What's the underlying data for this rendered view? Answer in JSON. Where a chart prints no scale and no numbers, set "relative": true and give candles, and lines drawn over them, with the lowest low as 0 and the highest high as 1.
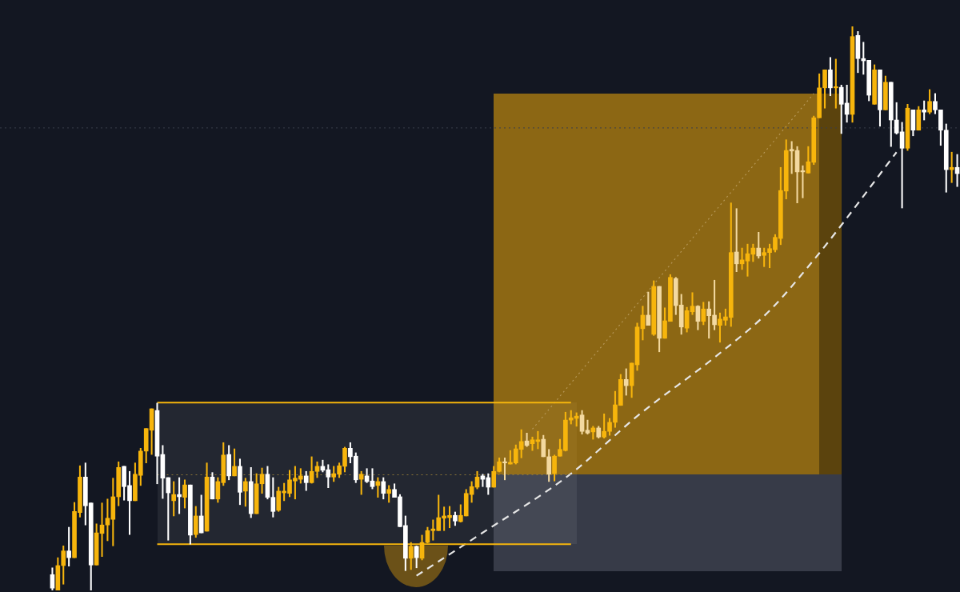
{
  "chart_data": {
    "type": "candlestick",
    "relative": true,
    "categories": [
      null,
      null,
      null,
      null,
      null,
      null,
      null,
      null,
      null,
      null,
      null,
      null,
      null,
      null,
      null,
      null,
      null,
      null,
      null,
      null,
      null,
      null,
      null,
      null,
      null,
      null,
      null,
      null,
      null,
      null,
      null,
      null,
      null,
      null,
      null,
      null,
      null,
      null,
      null,
      null,
      null,
      null,
      null,
      null,
      null,
      null,
      null,
      null,
      null,
      null,
      null,
      null,
      null,
      null,
      null,
      null,
      null,
      null,
      null,
      null,
      null,
      null,
      null,
      null,
      null,
      null,
      null,
      null,
      null,
      null,
      null,
      null,
      null,
      null,
      null,
      null,
      null,
      null,
      null,
      null,
      null,
      null,
      null,
      null,
      null,
      null,
      null,
      null,
      null,
      null,
      null,
      null,
      null,
      null,
      null,
      null,
      null,
      null,
      null,
      null,
      null,
      null,
      null,
      null,
      null,
      null,
      null,
      null,
      null,
      null,
      null,
      null,
      null,
      null,
      null,
      null,
      null,
      null,
      null,
      null,
      null,
      null,
      null,
      null,
      null,
      null,
      null,
      null,
      null,
      null,
      null,
      null,
      null,
      null,
      null,
      null,
      null,
      null,
      null,
      null,
      null,
      null,
      null,
      null,
      null,
      null,
      null,
      null,
      null,
      null,
      null,
      null,
      null,
      null,
      null,
      null,
      null,
      null,
      null,
      null,
      null,
      null,
      null,
      null,
      null
    ],
    "ohlc": [
      [
        0.028,
        0.04,
        0,
        0.004
      ],
      [
        0,
        0.058,
        0,
        0.044
      ],
      [
        0.044,
        0.079,
        0.011,
        0.07
      ],
      [
        0.07,
        0.112,
        0.043,
        0.058
      ],
      [
        0.058,
        0.156,
        0.058,
        0.14
      ],
      [
        0.138,
        0.221,
        0.13,
        0.201
      ],
      [
        0.201,
        0.226,
        0.116,
        0.15
      ],
      [
        0.155,
        0.155,
        0,
        0.045
      ],
      [
        0.045,
        0.118,
        0.045,
        0.102
      ],
      [
        0.101,
        0.155,
        0.06,
        0.116
      ],
      [
        0.116,
        0.162,
        0.088,
        0.128
      ],
      [
        0.126,
        0.199,
        0.079,
        0.166
      ],
      [
        0.166,
        0.228,
        0.15,
        0.218
      ],
      [
        0.22,
        0.22,
        0.16,
        0.184
      ],
      [
        0.186,
        0.211,
        0.099,
        0.159
      ],
      [
        0.159,
        0.226,
        0.159,
        0.206
      ],
      [
        0.204,
        0.252,
        0.186,
        0.247
      ],
      [
        0.247,
        0.287,
        0.226,
        0.287
      ],
      [
        0.284,
        0.322,
        0.241,
        0.322
      ],
      [
        0.319,
        0.332,
        0.189,
        0.238
      ],
      [
        0.241,
        0.257,
        0.163,
        0.199
      ],
      [
        0.2,
        0.2,
        0.089,
        0.173
      ],
      [
        0.159,
        0.193,
        0.132,
        0.17
      ],
      [
        0.17,
        0.2,
        0.136,
        0.166
      ],
      [
        0.165,
        0.196,
        0.146,
        0.187
      ],
      [
        0.187,
        0.187,
        0.082,
        0.098
      ],
      [
        0.099,
        0.149,
        0.094,
        0.132
      ],
      [
        0.132,
        0.169,
        0.102,
        0.102
      ],
      [
        0.105,
        0.226,
        0.105,
        0.201
      ],
      [
        0.201,
        0.209,
        0.162,
        0.162
      ],
      [
        0.162,
        0.2,
        0.156,
        0.193
      ],
      [
        0.191,
        0.262,
        0.186,
        0.24
      ],
      [
        0.241,
        0.257,
        0.196,
        0.203
      ],
      [
        0.203,
        0.251,
        0.203,
        0.22
      ],
      [
        0.22,
        0.233,
        0.152,
        0.174
      ],
      [
        0.176,
        0.199,
        0.149,
        0.193
      ],
      [
        0.193,
        0.218,
        0.129,
        0.136
      ],
      [
        0.136,
        0.207,
        0.136,
        0.189
      ],
      [
        0.189,
        0.217,
        0.172,
        0.206
      ],
      [
        0.206,
        0.22,
        0.162,
        0.165
      ],
      [
        0.165,
        0.2,
        0.13,
        0.14
      ],
      [
        0.142,
        0.183,
        0.14,
        0.176
      ],
      [
        0.173,
        0.19,
        0.159,
        0.176
      ],
      [
        0.172,
        0.213,
        0.166,
        0.196
      ],
      [
        0.194,
        0.22,
        0.162,
        0.199
      ],
      [
        0.197,
        0.216,
        0.19,
        0.203
      ],
      [
        0.203,
        0.211,
        0.177,
        0.191
      ],
      [
        0.191,
        0.237,
        0.19,
        0.211
      ],
      [
        0.211,
        0.228,
        0.2,
        0.22
      ],
      [
        0.22,
        0.231,
        0.21,
        0.213
      ],
      [
        0.214,
        0.223,
        0.182,
        0.201
      ],
      [
        0.201,
        0.22,
        0.193,
        0.207
      ],
      [
        0.206,
        0.226,
        0.2,
        0.221
      ],
      [
        0.22,
        0.254,
        0.21,
        0.252
      ],
      [
        0.252,
        0.262,
        0.226,
        0.237
      ],
      [
        0.238,
        0.244,
        0.191,
        0.196
      ],
      [
        0.197,
        0.211,
        0.17,
        0.206
      ],
      [
        0.203,
        0.216,
        0.191,
        0.193
      ],
      [
        0.194,
        0.216,
        0.18,
        0.184
      ],
      [
        0.186,
        0.2,
        0.165,
        0.193
      ],
      [
        0.193,
        0.2,
        0.162,
        0.172
      ],
      [
        0.172,
        0.186,
        0.156,
        0.179
      ],
      [
        0.179,
        0.189,
        0.165,
        0.165
      ],
      [
        0.166,
        0.17,
        0.113,
        0.113
      ],
      [
        0.115,
        0.132,
        0.035,
        0.057
      ],
      [
        0.057,
        0.085,
        0.037,
        0.078
      ],
      [
        0.078,
        0.079,
        0.04,
        0.058
      ],
      [
        0.057,
        0.098,
        0.054,
        0.085
      ],
      [
        0.085,
        0.112,
        0.084,
        0.106
      ],
      [
        0.106,
        0.125,
        0.089,
        0.109
      ],
      [
        0.106,
        0.169,
        0.106,
        0.129
      ],
      [
        0.128,
        0.148,
        0.106,
        0.132
      ],
      [
        0.129,
        0.149,
        0.111,
        0.133
      ],
      [
        0.133,
        0.139,
        0.115,
        0.123
      ],
      [
        0.122,
        0.152,
        0.121,
        0.133
      ],
      [
        0.132,
        0.179,
        0.132,
        0.172
      ],
      [
        0.17,
        0.193,
        0.156,
        0.184
      ],
      [
        0.183,
        0.211,
        0.18,
        0.201
      ],
      [
        0.203,
        0.206,
        0.184,
        0.197
      ],
      [
        0.2,
        0.207,
        0.17,
        0.183
      ],
      [
        0.183,
        0.22,
        0.183,
        0.211
      ],
      [
        0.211,
        0.235,
        0.21,
        0.228
      ],
      [
        0.228,
        0.235,
        0.196,
        0.226
      ],
      [
        0.224,
        0.248,
        0.224,
        0.227
      ],
      [
        0.226,
        0.258,
        0.224,
        0.251
      ],
      [
        0.25,
        0.285,
        0.235,
        0.264
      ],
      [
        0.265,
        0.279,
        0.255,
        0.257
      ],
      [
        0.26,
        0.272,
        0.248,
        0.267
      ],
      [
        0.264,
        0.282,
        0.251,
        0.267
      ],
      [
        0.268,
        0.275,
        0.237,
        0.237
      ],
      [
        0.237,
        0.25,
        0.193,
        0.206
      ],
      [
        0.207,
        0.24,
        0.194,
        0.238
      ],
      [
        0.238,
        0.268,
        0.238,
        0.25
      ],
      [
        0.248,
        0.316,
        0.247,
        0.302
      ],
      [
        0.302,
        0.319,
        0.295,
        0.306
      ],
      [
        0.305,
        0.315,
        0.291,
        0.309
      ],
      [
        0.311,
        0.319,
        0.277,
        0.282
      ],
      [
        0.284,
        0.302,
        0.277,
        0.279
      ],
      [
        0.281,
        0.291,
        0.268,
        0.288
      ],
      [
        0.288,
        0.291,
        0.27,
        0.272
      ],
      [
        0.272,
        0.313,
        0.27,
        0.282
      ],
      [
        0.282,
        0.305,
        0.275,
        0.298
      ],
      [
        0.298,
        0.353,
        0.289,
        0.329
      ],
      [
        0.328,
        0.383,
        0.328,
        0.374
      ],
      [
        0.374,
        0.393,
        0.346,
        0.363
      ],
      [
        0.363,
        0.403,
        0.342,
        0.403
      ],
      [
        0.4,
        0.474,
        0.39,
        0.467
      ],
      [
        0.464,
        0.504,
        0.444,
        0.488
      ],
      [
        0.488,
        0.529,
        0.47,
        0.47
      ],
      [
        0.454,
        0.549,
        0.452,
        0.539
      ],
      [
        0.539,
        0.539,
        0.423,
        0.447
      ],
      [
        0.447,
        0.501,
        0.447,
        0.478
      ],
      [
        0.477,
        0.56,
        0.477,
        0.555
      ],
      [
        0.553,
        0.555,
        0.489,
        0.505
      ],
      [
        0.506,
        0.525,
        0.454,
        0.467
      ],
      [
        0.465,
        0.502,
        0.458,
        0.496
      ],
      [
        0.494,
        0.528,
        0.489,
        0.504
      ],
      [
        0.504,
        0.505,
        0.462,
        0.477
      ],
      [
        0.477,
        0.511,
        0.471,
        0.499
      ],
      [
        0.499,
        0.512,
        0.447,
        0.487
      ],
      [
        0.488,
        0.55,
        0.462,
        0.471
      ],
      [
        0.47,
        0.492,
        0.44,
        0.481
      ],
      [
        0.479,
        0.499,
        0.47,
        0.485
      ],
      [
        0.484,
        0.687,
        0.468,
        0.599
      ],
      [
        0.6,
        0.677,
        0.565,
        0.579
      ],
      [
        0.579,
        0.607,
        0.569,
        0.586
      ],
      [
        0.584,
        0.614,
        0.557,
        0.597
      ],
      [
        0.596,
        0.614,
        0.583,
        0.607
      ],
      [
        0.607,
        0.635,
        0.589,
        0.593
      ],
      [
        0.594,
        0.607,
        0.574,
        0.599
      ],
      [
        0.599,
        0.614,
        0.572,
        0.606
      ],
      [
        0.604,
        0.631,
        0.6,
        0.626
      ],
      [
        0.624,
        0.75,
        0.613,
        0.709
      ],
      [
        0.708,
        0.799,
        0.694,
        0.78
      ],
      [
        0.782,
        0.796,
        0.739,
        0.779
      ],
      [
        0.78,
        0.787,
        0.687,
        0.742
      ],
      [
        0.743,
        0.753,
        0.696,
        0.742
      ],
      [
        0.74,
        0.787,
        0.74,
        0.76
      ],
      [
        0.759,
        0.841,
        0.755,
        0.838
      ],
      [
        0.838,
        0.916,
        0.838,
        0.891
      ],
      [
        0.891,
        0.923,
        0.855,
        0.923
      ],
      [
        0.923,
        0.945,
        0.877,
        0.891
      ],
      [
        0.891,
        0.942,
        0.855,
        0.892
      ],
      [
        0.892,
        0.896,
        0.81,
        0.862
      ],
      [
        0.864,
        0.896,
        0.83,
        0.844
      ],
      [
        0.844,
        1,
        0.83,
        0.982
      ],
      [
        0.984,
        0.991,
        0.918,
        0.943
      ],
      [
        0.943,
        0.972,
        0.915,
        0.939
      ],
      [
        0.94,
        0.94,
        0.868,
        0.878
      ],
      [
        0.862,
        0.932,
        0.862,
        0.923
      ],
      [
        0.923,
        0.923,
        0.823,
        0.852
      ],
      [
        0.852,
        0.912,
        0.852,
        0.901
      ],
      [
        0.901,
        0.901,
        0.787,
        0.834
      ],
      [
        0.834,
        0.865,
        0.809,
        0.811
      ],
      [
        0.813,
        0.83,
        0.678,
        0.784
      ],
      [
        0.784,
        0.862,
        0.78,
        0.855
      ],
      [
        0.852,
        0.852,
        0.806,
        0.816
      ],
      [
        0.816,
        0.858,
        0.816,
        0.852
      ],
      [
        0.852,
        0.868,
        0.834,
        0.848
      ],
      [
        0.848,
        0.888,
        0.845,
        0.867
      ],
      [
        0.867,
        0.881,
        0.845,
        0.852
      ],
      [
        0.852,
        0.852,
        0.789,
        0.816
      ],
      [
        0.816,
        0.827,
        0.706,
        0.746
      ],
      [
        0.746,
        0.777,
        0.723,
        0.75
      ],
      [
        0.75,
        0.773,
        0.716,
        0.739
      ]
    ],
    "colors": [
      "#ffffff",
      "#f7b50c",
      "#f7b50c",
      "#ffffff",
      "#f7b50c",
      "#f7b50c",
      "#ffffff",
      "#ffffff",
      "#f7b50c",
      "#f7b50c",
      "#f7b50c",
      "#f7b50c",
      "#f7b50c",
      "#ffffff",
      "#ffffff",
      "#f7b50c",
      "#f7b50c",
      "#f7b50c",
      "#f7b50c",
      "#ffffff",
      "#ffffff",
      "#ffffff",
      "#f7b50c",
      "#ffffff",
      "#f7b50c",
      "#ffffff",
      "#f7b50c",
      "#ffffff",
      "#f7b50c",
      "#ffffff",
      "#f7b50c",
      "#f7b50c",
      "#ffffff",
      "#f7b50c",
      "#ffffff",
      "#f7b50c",
      "#ffffff",
      "#f7b50c",
      "#f7b50c",
      "#ffffff",
      "#ffffff",
      "#f7b50c",
      "#f7b50c",
      "#f7b50c",
      "#f7b50c",
      "#f7b50c",
      "#ffffff",
      "#f7b50c",
      "#f7b50c",
      "#ffffff",
      "#ffffff",
      "#f7b50c",
      "#f7b50c",
      "#f7b50c",
      "#ffffff",
      "#ffffff",
      "#f7b50c",
      "#ffffff",
      "#ffffff",
      "#f7b50c",
      "#ffffff",
      "#f7b50c",
      "#ffffff",
      "#ffffff",
      "#ffffff",
      "#f7b50c",
      "#ffffff",
      "#f7b50c",
      "#f7b50c",
      "#f7b50c",
      "#f7b50c",
      "#f7b50c",
      "#f7b50c",
      "#ffffff",
      "#f7b50c",
      "#f7b50c",
      "#f7b50c",
      "#f7b50c",
      "#ffffff",
      "#ffffff",
      "#f7b50c",
      "#f7b50c",
      "#f3d9a0",
      "#f7b50c",
      "#f7b50c",
      "#f7b50c",
      "#f3d9a0",
      "#f7b50c",
      "#f7b50c",
      "#f3d9a0",
      "#f3d9a0",
      "#f7b50c",
      "#f7b50c",
      "#f7b50c",
      "#f7b50c",
      "#f7b50c",
      "#f3d9a0",
      "#f3d9a0",
      "#f7b50c",
      "#f3d9a0",
      "#f7b50c",
      "#f7b50c",
      "#f7b50c",
      "#f7b50c",
      "#f3d9a0",
      "#f7b50c",
      "#f7b50c",
      "#f7b50c",
      "#f3d9a0",
      "#f7b50c",
      "#f3d9a0",
      "#f7b50c",
      "#f7b50c",
      "#f3d9a0",
      "#f3d9a0",
      "#f7b50c",
      "#f7b50c",
      "#f3d9a0",
      "#f7b50c",
      "#f3d9a0",
      "#f3d9a0",
      "#f7b50c",
      "#f7b50c",
      "#f7b50c",
      "#f3d9a0",
      "#f7b50c",
      "#f7b50c",
      "#f7b50c",
      "#f3d9a0",
      "#f7b50c",
      "#f7b50c",
      "#f7b50c",
      "#f7b50c",
      "#f7b50c",
      "#f3d9a0",
      "#f3d9a0",
      "#f3d9a0",
      "#f7b50c",
      "#f7b50c",
      "#f7b50c",
      "#f7b50c",
      "#ffffff",
      "#f7b50c",
      "#ffffff",
      "#ffffff",
      "#f7b50c",
      "#ffffff",
      "#ffffff",
      "#ffffff",
      "#f7b50c",
      "#ffffff",
      "#f7b50c",
      "#ffffff",
      "#ffffff",
      "#ffffff",
      "#f7b50c",
      "#ffffff",
      "#f7b50c",
      "#ffffff",
      "#f7b50c",
      "#ffffff",
      "#ffffff",
      "#ffffff",
      "#f7b50c",
      "#ffffff"
    ],
    "series": [
      {
        "type": "line",
        "color": "#f5b50c",
        "line_style": "solid",
        "values": [
          null,
          null,
          null,
          null,
          null,
          null,
          null,
          null,
          null,
          null,
          null,
          null,
          null,
          null,
          null,
          null,
          null,
          null,
          null,
          0.333,
          null,
          null,
          null,
          null,
          null,
          null,
          null,
          null,
          null,
          null,
          null,
          null,
          null,
          null,
          null,
          null,
          null,
          null,
          null,
          null,
          null,
          null,
          null,
          null,
          null,
          null,
          null,
          null,
          null,
          null,
          null,
          null,
          null,
          null,
          null,
          null,
          null,
          null,
          null,
          null,
          null,
          null,
          null,
          null,
          null,
          null,
          null,
          null,
          null,
          null,
          null,
          null,
          null,
          null,
          null,
          null,
          null,
          null,
          null,
          null,
          null,
          null,
          null,
          null,
          null,
          null,
          null,
          null,
          null,
          null,
          null,
          null,
          null,
          null,
          0.333,
          null,
          null,
          null,
          null,
          null,
          null,
          null,
          null,
          null,
          null,
          null,
          null,
          null,
          null,
          null,
          null,
          null,
          null,
          null,
          null,
          null,
          null,
          null,
          null,
          null,
          null,
          null,
          null,
          null,
          null,
          null,
          null,
          null,
          null,
          null,
          null,
          null,
          null,
          null,
          null,
          null,
          null,
          null,
          null,
          null,
          null,
          null,
          null,
          null,
          null,
          null,
          null,
          null,
          null,
          null,
          null,
          null,
          null,
          null,
          null,
          null,
          null,
          null,
          null,
          null,
          null,
          null,
          null,
          null,
          null
        ]
      },
      {
        "type": "line",
        "color": "#f5b50c",
        "line_style": "solid",
        "values": [
          null,
          null,
          null,
          null,
          null,
          null,
          null,
          null,
          null,
          null,
          null,
          null,
          null,
          null,
          null,
          null,
          null,
          null,
          null,
          0.082,
          null,
          null,
          null,
          null,
          null,
          null,
          null,
          null,
          null,
          null,
          null,
          null,
          null,
          null,
          null,
          null,
          null,
          null,
          null,
          null,
          null,
          null,
          null,
          null,
          null,
          null,
          null,
          null,
          null,
          null,
          null,
          null,
          null,
          null,
          null,
          null,
          null,
          null,
          null,
          null,
          null,
          null,
          null,
          null,
          null,
          null,
          null,
          null,
          null,
          null,
          null,
          null,
          null,
          null,
          null,
          null,
          null,
          null,
          null,
          null,
          null,
          null,
          null,
          null,
          null,
          null,
          null,
          null,
          null,
          null,
          null,
          null,
          null,
          null,
          0.082,
          null,
          null,
          null,
          null,
          null,
          null,
          null,
          null,
          null,
          null,
          null,
          null,
          null,
          null,
          null,
          null,
          null,
          null,
          null,
          null,
          null,
          null,
          null,
          null,
          null,
          null,
          null,
          null,
          null,
          null,
          null,
          null,
          null,
          null,
          null,
          null,
          null,
          null,
          null,
          null,
          null,
          null,
          null,
          null,
          null,
          null,
          null,
          null,
          null,
          null,
          null,
          null,
          null,
          null,
          null,
          null,
          null,
          null,
          null,
          null,
          null,
          null,
          null,
          null,
          null,
          null,
          null,
          null,
          null,
          null
        ]
      },
      {
        "type": "line",
        "color": "#8a7436",
        "line_style": "dotted",
        "values": [
          null,
          null,
          null,
          null,
          null,
          null,
          null,
          null,
          null,
          null,
          null,
          null,
          null,
          null,
          null,
          null,
          null,
          null,
          null,
          0.205,
          null,
          null,
          null,
          null,
          null,
          null,
          null,
          null,
          null,
          null,
          null,
          null,
          null,
          null,
          null,
          null,
          null,
          null,
          null,
          null,
          null,
          null,
          null,
          null,
          null,
          null,
          null,
          null,
          null,
          null,
          null,
          null,
          null,
          null,
          null,
          null,
          null,
          null,
          null,
          null,
          null,
          null,
          null,
          null,
          null,
          null,
          null,
          null,
          null,
          null,
          null,
          null,
          null,
          null,
          null,
          null,
          null,
          null,
          null,
          null,
          null,
          null,
          null,
          null,
          null,
          null,
          null,
          null,
          null,
          null,
          null,
          null,
          null,
          null,
          0.205,
          null,
          null,
          null,
          null,
          null,
          null,
          null,
          null,
          null,
          null,
          null,
          null,
          null,
          null,
          null,
          null,
          null,
          null,
          null,
          null,
          null,
          null,
          null,
          null,
          null,
          null,
          null,
          null,
          null,
          null,
          null,
          null,
          null,
          null,
          null,
          null,
          null,
          null,
          null,
          null,
          null,
          null,
          null,
          null,
          null,
          null,
          null,
          null,
          null,
          null,
          null,
          null,
          null,
          null,
          null,
          null,
          null,
          null,
          null,
          null,
          null,
          null,
          null,
          null,
          null,
          null,
          null,
          null,
          null,
          null
        ]
      },
      {
        "type": "line",
        "color": "#b89a5c",
        "line_style": "dotted",
        "values": [
          null,
          null,
          null,
          null,
          null,
          null,
          null,
          null,
          null,
          null,
          null,
          null,
          null,
          null,
          null,
          null,
          null,
          null,
          null,
          null,
          null,
          null,
          null,
          null,
          null,
          null,
          null,
          null,
          null,
          null,
          null,
          null,
          null,
          null,
          null,
          null,
          null,
          null,
          null,
          null,
          null,
          null,
          null,
          null,
          null,
          null,
          null,
          null,
          null,
          null,
          null,
          null,
          null,
          null,
          null,
          null,
          null,
          null,
          null,
          null,
          null,
          null,
          null,
          null,
          null,
          null,
          null,
          null,
          null,
          null,
          null,
          null,
          null,
          null,
          null,
          null,
          null,
          null,
          null,
          null,
          null,
          null,
          null,
          null,
          null,
          null,
          null,
          0.286,
          null,
          null,
          null,
          null,
          null,
          null,
          null,
          null,
          null,
          null,
          null,
          null,
          null,
          null,
          null,
          null,
          null,
          null,
          null,
          null,
          null,
          null,
          null,
          null,
          null,
          null,
          null,
          null,
          null,
          null,
          null,
          null,
          null,
          null,
          null,
          null,
          null,
          null,
          null,
          null,
          null,
          null,
          null,
          null,
          null,
          null,
          null,
          null,
          null,
          null,
          0.881,
          null,
          null,
          null,
          null,
          null,
          null,
          null,
          null,
          null,
          null,
          null,
          null,
          null,
          null,
          null,
          null,
          null,
          null,
          null,
          null,
          null,
          null,
          null,
          null,
          null,
          null
        ]
      },
      {
        "type": "line",
        "color": "#e6e6e6",
        "line_style": "dashed",
        "values": [
          null,
          null,
          null,
          null,
          null,
          null,
          null,
          null,
          null,
          null,
          null,
          null,
          null,
          null,
          null,
          null,
          null,
          null,
          null,
          null,
          null,
          null,
          null,
          null,
          null,
          null,
          null,
          null,
          null,
          null,
          null,
          null,
          null,
          null,
          null,
          null,
          null,
          null,
          null,
          null,
          null,
          null,
          null,
          null,
          null,
          null,
          null,
          null,
          null,
          null,
          null,
          null,
          null,
          null,
          null,
          null,
          null,
          null,
          null,
          null,
          null,
          null,
          null,
          null,
          null,
          null,
          0.026,
          null,
          null,
          null,
          null,
          null,
          null,
          null,
          null,
          null,
          null,
          0.096,
          null,
          null,
          null,
          null,
          null,
          null,
          null,
          null,
          null,
          null,
          null,
          null,
          null,
          null,
          null,
          null,
          0.207,
          null,
          null,
          null,
          null,
          null,
          null,
          null,
          null,
          null,
          null,
          null,
          0.309,
          null,
          null,
          null,
          null,
          null,
          null,
          null,
          null,
          null,
          null,
          null,
          null,
          null,
          0.413,
          null,
          null,
          null,
          null,
          null,
          null,
          null,
          null,
          null,
          0.496,
          null,
          null,
          null,
          null,
          null,
          null,
          null,
          0.586,
          null,
          null,
          null,
          0.635,
          null,
          null,
          null,
          null,
          null,
          null,
          null,
          null,
          null,
          null,
          0.777,
          null,
          null,
          null,
          null,
          null,
          null,
          null,
          null,
          null,
          null,
          null
        ]
      }
    ],
    "ref_lines": [
      {
        "axis": "y",
        "value": 0.82,
        "color": "#3a3f4c",
        "line_style": "dotted"
      }
    ]
  }
}
